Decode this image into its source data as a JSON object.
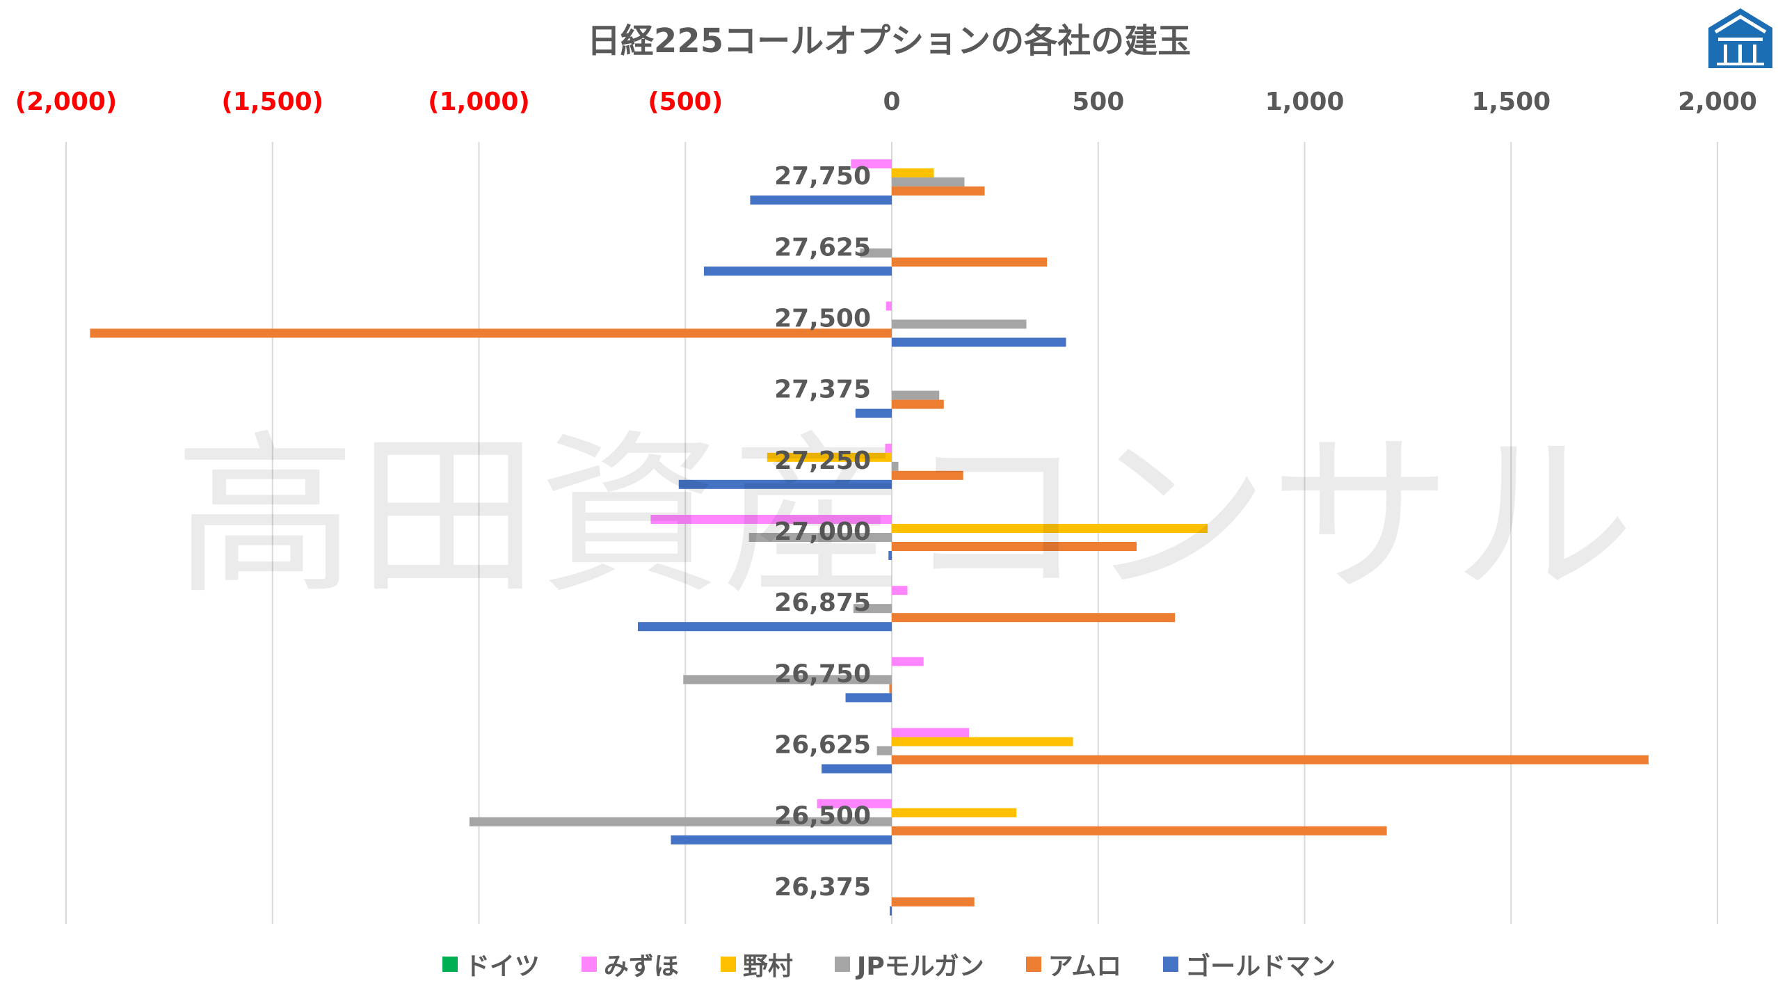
{
  "chart_data": {
    "type": "bar",
    "orientation": "horizontal",
    "title": "日経225コールオプションの各社の建玉",
    "categories": [
      "27,750",
      "27,625",
      "27,500",
      "27,375",
      "27,250",
      "27,000",
      "26,875",
      "26,750",
      "26,625",
      "26,500",
      "26,375"
    ],
    "series": [
      {
        "name": "ドイツ",
        "color": "#00B050",
        "values": [
          0,
          0,
          0,
          0,
          0,
          0,
          0,
          0,
          0,
          0,
          0
        ]
      },
      {
        "name": "みずほ",
        "color": "#FF85FF",
        "values": [
          -99,
          0,
          -14,
          0,
          -16,
          -584,
          38,
          77,
          187,
          -181,
          0
        ]
      },
      {
        "name": "野村",
        "color": "#FFC000",
        "values": [
          102,
          0,
          0,
          0,
          -302,
          765,
          0,
          0,
          439,
          302,
          0
        ]
      },
      {
        "name": "JPモルガン",
        "color": "#A5A5A5",
        "values": [
          176,
          -77,
          326,
          115,
          16,
          -346,
          -93,
          -505,
          -36,
          -1023,
          0
        ]
      },
      {
        "name": "アムロ",
        "color": "#ED7D31",
        "values": [
          225,
          376,
          -1942,
          126,
          173,
          593,
          686,
          -6,
          1833,
          1199,
          200
        ]
      },
      {
        "name": "ゴールドマン",
        "color": "#4472C4",
        "values": [
          -343,
          -455,
          422,
          -88,
          -516,
          -8,
          -615,
          -112,
          -170,
          -535,
          -5
        ]
      }
    ],
    "xlim": [
      -2000,
      2000
    ],
    "x_ticks": [
      -2000,
      -1500,
      -1000,
      -500,
      0,
      500,
      1000,
      1500,
      2000
    ],
    "x_tick_labels": [
      "(2,000)",
      "(1,500)",
      "(1,000)",
      "(500)",
      "0",
      "500",
      "1,000",
      "1,500",
      "2,000"
    ],
    "negative_tick_color": "#FF0000",
    "tick_color": "#595959",
    "axis_position": "top",
    "grid": true,
    "legend_position": "bottom"
  },
  "watermark": "高田資産コンサル",
  "logo": {
    "icon": "house-logo-icon",
    "color": "#1C6EB4"
  }
}
